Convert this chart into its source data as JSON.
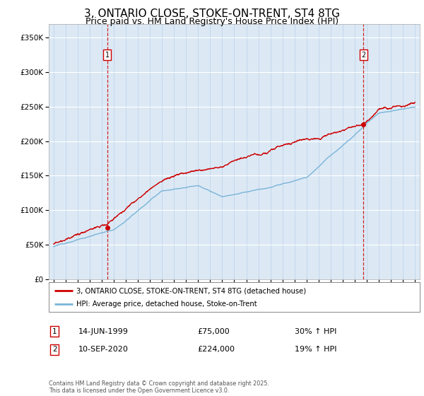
{
  "title": "3, ONTARIO CLOSE, STOKE-ON-TRENT, ST4 8TG",
  "subtitle": "Price paid vs. HM Land Registry's House Price Index (HPI)",
  "title_fontsize": 11,
  "subtitle_fontsize": 9,
  "ylim": [
    0,
    370000
  ],
  "yticks": [
    0,
    50000,
    100000,
    150000,
    200000,
    250000,
    300000,
    350000
  ],
  "ytick_labels": [
    "£0",
    "£50K",
    "£100K",
    "£150K",
    "£200K",
    "£250K",
    "£300K",
    "£350K"
  ],
  "background_color": "#dce9f5",
  "hpi_line_color": "#7ab4d8",
  "price_line_color": "#cc0000",
  "vline_color": "#cc0000",
  "marker1_x": 1999.45,
  "marker2_x": 2020.72,
  "marker1_price": 75000,
  "marker2_price": 224000,
  "legend_entry1": "3, ONTARIO CLOSE, STOKE-ON-TRENT, ST4 8TG (detached house)",
  "legend_entry2": "HPI: Average price, detached house, Stoke-on-Trent",
  "annotation1_date": "14-JUN-1999",
  "annotation1_price": "£75,000",
  "annotation1_hpi": "30% ↑ HPI",
  "annotation2_date": "10-SEP-2020",
  "annotation2_price": "£224,000",
  "annotation2_hpi": "19% ↑ HPI",
  "footer": "Contains HM Land Registry data © Crown copyright and database right 2025.\nThis data is licensed under the Open Government Licence v3.0.",
  "x_start_year": 1995,
  "x_end_year": 2025
}
